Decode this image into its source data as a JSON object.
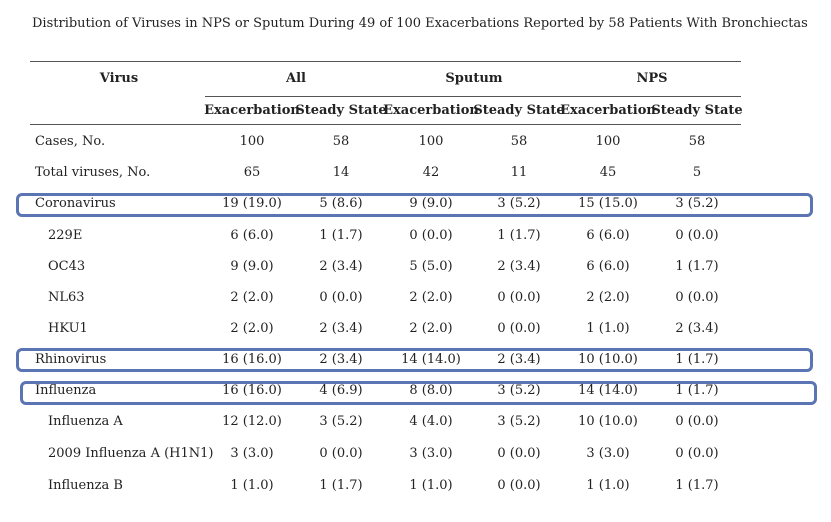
{
  "caption": "Distribution of Viruses in NPS or Sputum During 49 of 100 Exacerbations Reported by 58 Patients With Bronchiectas",
  "headers": {
    "virus": "Virus",
    "all": "All",
    "sputum": "Sputum",
    "nps": "NPS",
    "exacerbation": "Exacerbation",
    "steady_state": "Steady State"
  },
  "rows": [
    {
      "label": "Cases, No.",
      "values": [
        "100",
        "58",
        "100",
        "58",
        "100",
        "58"
      ]
    },
    {
      "label": "Total viruses, No.",
      "values": [
        "65",
        "14",
        "42",
        "11",
        "45",
        "5"
      ]
    },
    {
      "label": "Coronavirus",
      "values": [
        "19 (19.0)",
        "5 (8.6)",
        "9 (9.0)",
        "3 (5.2)",
        "15 (15.0)",
        "3 (5.2)"
      ]
    },
    {
      "label": "229E",
      "values": [
        "6 (6.0)",
        "1 (1.7)",
        "0 (0.0)",
        "1 (1.7)",
        "6 (6.0)",
        "0 (0.0)"
      ]
    },
    {
      "label": "OC43",
      "values": [
        "9 (9.0)",
        "2 (3.4)",
        "5 (5.0)",
        "2 (3.4)",
        "6 (6.0)",
        "1 (1.7)"
      ]
    },
    {
      "label": "NL63",
      "values": [
        "2 (2.0)",
        "0 (0.0)",
        "2 (2.0)",
        "0 (0.0)",
        "2 (2.0)",
        "0 (0.0)"
      ]
    },
    {
      "label": "HKU1",
      "values": [
        "2 (2.0)",
        "2 (3.4)",
        "2 (2.0)",
        "0 (0.0)",
        "1 (1.0)",
        "2 (3.4)"
      ]
    },
    {
      "label": "Rhinovirus",
      "values": [
        "16 (16.0)",
        "2 (3.4)",
        "14 (14.0)",
        "2 (3.4)",
        "10 (10.0)",
        "1 (1.7)"
      ]
    },
    {
      "label": "Influenza",
      "values": [
        "16 (16.0)",
        "4 (6.9)",
        "8 (8.0)",
        "3 (5.2)",
        "14 (14.0)",
        "1 (1.7)"
      ]
    },
    {
      "label": "Influenza A",
      "values": [
        "12 (12.0)",
        "3 (5.2)",
        "4 (4.0)",
        "3 (5.2)",
        "10 (10.0)",
        "0 (0.0)"
      ]
    },
    {
      "label": "2009 Influenza A (H1N1)",
      "values": [
        "3 (3.0)",
        "0 (0.0)",
        "3 (3.0)",
        "0 (0.0)",
        "3 (3.0)",
        "0 (0.0)"
      ]
    },
    {
      "label": "Influenza B",
      "values": [
        "1 (1.0)",
        "1 (1.7)",
        "1 (1.0)",
        "0 (0.0)",
        "1 (1.0)",
        "1 (1.7)"
      ]
    }
  ],
  "highlight_color": "#5b74b3"
}
